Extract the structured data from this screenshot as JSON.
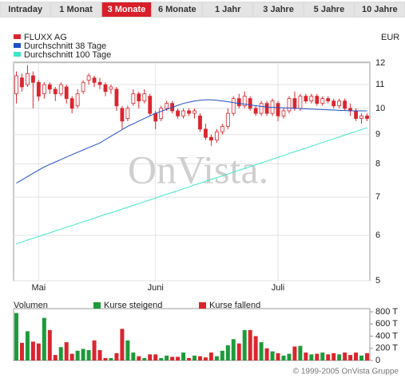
{
  "tabs": [
    "Intraday",
    "1 Monat",
    "3 Monate",
    "6 Monate",
    "1 Jahr",
    "3 Jahre",
    "5 Jahre",
    "10 Jahre"
  ],
  "active_tab": 2,
  "footer": "© 1999-2005 OnVista Gruppe",
  "chart_data": [
    {
      "type": "candlestick",
      "y_label": "EUR",
      "watermark": "OnVista.",
      "log_scale": true,
      "grid": true,
      "categories": [
        null,
        null,
        null,
        null,
        "Mai",
        null,
        null,
        null,
        null,
        null,
        null,
        null,
        null,
        null,
        null,
        null,
        null,
        null,
        null,
        null,
        null,
        null,
        null,
        null,
        null,
        "Juni",
        null,
        null,
        null,
        null,
        null,
        null,
        null,
        null,
        null,
        null,
        null,
        null,
        null,
        null,
        null,
        null,
        null,
        null,
        null,
        null,
        null,
        "Juli",
        null,
        null,
        null,
        null,
        null,
        null,
        null,
        null,
        null,
        null,
        null,
        null,
        null,
        null,
        null,
        null
      ],
      "ylim": [
        5,
        12
      ],
      "yticks": [
        5,
        6,
        7,
        8,
        9,
        10,
        11,
        12
      ],
      "series": [
        {
          "name": "FLUXX AG",
          "color": "#d9262e",
          "open": [
            10.6,
            11.3,
            11.0,
            11.4,
            11.1,
            10.6,
            11.0,
            10.8,
            10.6,
            10.9,
            10.4,
            10.1,
            10.7,
            11.2,
            11.3,
            11.1,
            11.0,
            10.8,
            10.8,
            10.0,
            9.6,
            10.2,
            10.6,
            10.3,
            10.5,
            9.8,
            9.6,
            10.0,
            10.2,
            9.9,
            9.7,
            9.9,
            9.8,
            9.7,
            9.2,
            8.9,
            8.8,
            9.1,
            9.3,
            9.8,
            10.4,
            10.1,
            10.4,
            10.0,
            9.8,
            10.2,
            9.8,
            10.2,
            9.7,
            9.9,
            10.4,
            10.0,
            10.5,
            10.3,
            10.5,
            10.2,
            10.4,
            10.3,
            10.1,
            10.3,
            10.0,
            9.9,
            9.6,
            9.7
          ],
          "close": [
            11.4,
            10.9,
            11.5,
            11.1,
            10.5,
            11.0,
            10.8,
            10.6,
            11.0,
            10.4,
            10.0,
            10.6,
            11.1,
            11.4,
            11.1,
            11.0,
            10.7,
            10.9,
            10.1,
            9.5,
            10.0,
            10.6,
            10.3,
            10.6,
            9.8,
            9.5,
            10.0,
            10.2,
            9.9,
            9.7,
            9.9,
            9.8,
            9.9,
            9.2,
            8.9,
            8.8,
            9.1,
            9.3,
            9.8,
            10.4,
            10.1,
            10.5,
            10.0,
            9.8,
            10.2,
            9.8,
            10.3,
            9.7,
            9.9,
            10.4,
            10.0,
            10.5,
            10.3,
            10.5,
            10.2,
            10.4,
            10.3,
            10.1,
            10.3,
            10.0,
            9.9,
            9.6,
            9.7,
            9.6
          ],
          "high": [
            11.6,
            11.5,
            11.9,
            11.6,
            11.2,
            11.1,
            11.1,
            10.9,
            11.1,
            11.0,
            10.5,
            10.8,
            11.2,
            11.5,
            11.4,
            11.3,
            11.1,
            11.0,
            10.9,
            10.1,
            10.1,
            10.8,
            10.7,
            10.8,
            10.6,
            9.9,
            10.1,
            10.3,
            10.3,
            10.0,
            10.0,
            10.0,
            10.0,
            9.8,
            9.4,
            9.0,
            9.2,
            9.4,
            10.0,
            10.5,
            10.6,
            10.7,
            10.5,
            10.1,
            10.3,
            10.3,
            10.4,
            10.3,
            10.0,
            10.5,
            10.7,
            10.6,
            10.6,
            10.6,
            10.6,
            10.5,
            10.5,
            10.4,
            10.4,
            10.4,
            10.2,
            10.0,
            9.8,
            9.8
          ],
          "low": [
            10.2,
            10.7,
            10.9,
            10.0,
            10.3,
            10.4,
            10.6,
            10.3,
            10.5,
            10.2,
            9.8,
            10.0,
            10.6,
            11.0,
            10.9,
            10.8,
            10.5,
            10.6,
            9.9,
            9.2,
            9.5,
            10.1,
            10.0,
            10.2,
            9.7,
            9.2,
            9.5,
            9.9,
            9.8,
            9.6,
            9.6,
            9.7,
            9.6,
            9.1,
            8.8,
            8.6,
            8.7,
            9.0,
            9.2,
            9.7,
            10.0,
            10.0,
            9.9,
            9.7,
            9.7,
            9.7,
            9.7,
            9.5,
            9.6,
            9.8,
            9.9,
            9.9,
            10.2,
            10.2,
            10.1,
            10.1,
            10.2,
            10.0,
            10.0,
            9.9,
            9.7,
            9.5,
            9.4,
            9.5
          ]
        },
        {
          "name": "Durchschnitt 38 Tage",
          "color": "#1f4fc4",
          "type": "line",
          "values": [
            7.4,
            7.5,
            7.6,
            7.7,
            7.8,
            7.9,
            7.98,
            8.06,
            8.14,
            8.22,
            8.3,
            8.38,
            8.46,
            8.54,
            8.62,
            8.7,
            8.82,
            8.94,
            9.06,
            9.18,
            9.3,
            9.4,
            9.5,
            9.6,
            9.7,
            9.8,
            9.88,
            9.96,
            10.04,
            10.12,
            10.2,
            10.25,
            10.3,
            10.33,
            10.35,
            10.35,
            10.33,
            10.3,
            10.27,
            10.23,
            10.2,
            10.17,
            10.14,
            10.11,
            10.08,
            10.05,
            10.04,
            10.03,
            10.02,
            10.01,
            10.0,
            9.99,
            9.98,
            9.97,
            9.96,
            9.95,
            9.94,
            9.93,
            9.92,
            9.91,
            9.9,
            9.9,
            9.9,
            9.9
          ]
        },
        {
          "name": "Durchschnitt 100 Tage",
          "color": "#3ee6c8",
          "type": "line",
          "values": [
            5.8,
            5.84,
            5.89,
            5.93,
            5.97,
            6.02,
            6.06,
            6.11,
            6.15,
            6.2,
            6.24,
            6.29,
            6.34,
            6.38,
            6.43,
            6.48,
            6.53,
            6.57,
            6.62,
            6.67,
            6.72,
            6.77,
            6.82,
            6.87,
            6.92,
            6.97,
            7.03,
            7.08,
            7.13,
            7.18,
            7.24,
            7.29,
            7.35,
            7.4,
            7.46,
            7.51,
            7.57,
            7.62,
            7.68,
            7.74,
            7.8,
            7.85,
            7.91,
            7.97,
            8.03,
            8.09,
            8.15,
            8.21,
            8.27,
            8.34,
            8.4,
            8.46,
            8.52,
            8.59,
            8.65,
            8.72,
            8.78,
            8.85,
            8.91,
            8.98,
            9.05,
            9.11,
            9.18,
            9.25
          ]
        }
      ]
    },
    {
      "type": "bar",
      "title": "Volumen",
      "legend": [
        {
          "name": "Kurse steigend",
          "color": "#1e9a3a"
        },
        {
          "name": "Kurse fallend",
          "color": "#d9262e"
        }
      ],
      "ylim": [
        0,
        800
      ],
      "yticks": [
        0,
        {
          "value": 200,
          "label": "200 T"
        },
        {
          "value": 400,
          "label": "400 T"
        },
        {
          "value": 600,
          "label": "600 T"
        },
        {
          "value": 800,
          "label": "800 T"
        }
      ],
      "values": [
        780,
        290,
        480,
        310,
        280,
        700,
        500,
        90,
        220,
        300,
        110,
        160,
        190,
        170,
        330,
        170,
        40,
        40,
        120,
        520,
        330,
        130,
        70,
        40,
        100,
        100,
        40,
        80,
        60,
        60,
        130,
        40,
        80,
        70,
        50,
        130,
        70,
        160,
        250,
        350,
        280,
        500,
        500,
        400,
        300,
        200,
        150,
        120,
        80,
        110,
        230,
        240,
        130,
        100,
        110,
        130,
        100,
        120,
        100,
        130,
        90,
        130,
        80,
        120
      ]
    }
  ]
}
